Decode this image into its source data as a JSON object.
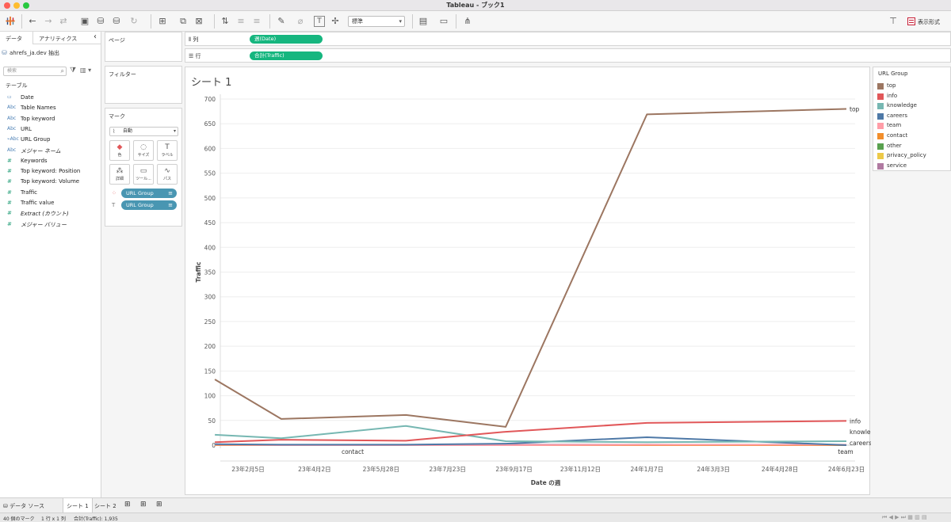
{
  "window": {
    "title": "Tableau - ブック1"
  },
  "toolbar": {
    "tableau_icon": "tableau-logo-icon",
    "undo_icon": "arrow-left-icon",
    "redo_icon": "arrow-right-icon",
    "view_size": "標準",
    "format_button_label": "表示形式"
  },
  "data_pane": {
    "tabs": [
      "データ",
      "アナリティクス"
    ],
    "collapse_glyph": "‹",
    "datasource": "ahrefs_ja.dev 抽出",
    "search_placeholder": "検索",
    "section_title": "テーブル",
    "dimensions": [
      {
        "type": "date",
        "icon": "▭",
        "label": "Date",
        "italic": false
      },
      {
        "type": "string",
        "icon": "Abc",
        "label": "Table Names",
        "italic": false
      },
      {
        "type": "string",
        "icon": "Abc",
        "label": "Top keyword",
        "italic": false
      },
      {
        "type": "string",
        "icon": "Abc",
        "label": "URL",
        "italic": false
      },
      {
        "type": "group",
        "icon": "⌁Abc",
        "label": "URL Group",
        "italic": false
      },
      {
        "type": "string",
        "icon": "Abc",
        "label": "メジャー ネーム",
        "italic": true
      }
    ],
    "measures": [
      {
        "type": "number",
        "icon": "#",
        "label": "Keywords",
        "italic": false
      },
      {
        "type": "number",
        "icon": "#",
        "label": "Top keyword: Position",
        "italic": false
      },
      {
        "type": "number",
        "icon": "#",
        "label": "Top keyword: Volume",
        "italic": false
      },
      {
        "type": "number",
        "icon": "#",
        "label": "Traffic",
        "italic": false
      },
      {
        "type": "number",
        "icon": "#",
        "label": "Traffic value",
        "italic": false
      },
      {
        "type": "number",
        "icon": "#",
        "label": "Extract (カウント)",
        "italic": true
      },
      {
        "type": "number",
        "icon": "#",
        "label": "メジャー バリュー",
        "italic": true
      }
    ]
  },
  "cards": {
    "pages": "ページ",
    "filters": "フィルター",
    "marks": {
      "title": "マーク",
      "mark_type": "自動",
      "buttons": [
        {
          "name": "color",
          "label": "色",
          "icon": "◆"
        },
        {
          "name": "size",
          "label": "サイズ",
          "icon": "◌"
        },
        {
          "name": "label",
          "label": "ラベル",
          "icon": "T"
        },
        {
          "name": "detail",
          "label": "詳細",
          "icon": "⁂"
        },
        {
          "name": "tooltip",
          "label": "ツール...",
          "icon": "▭"
        },
        {
          "name": "path",
          "label": "パス",
          "icon": "∿"
        }
      ],
      "pills": [
        {
          "role": "color",
          "label": "URL Group"
        },
        {
          "role": "label",
          "label": "URL Group"
        }
      ]
    }
  },
  "shelves": {
    "columns_label": "列",
    "columns_pill": "週(Date)",
    "rows_label": "行",
    "rows_pill": "合計(Traffic)"
  },
  "sheet": {
    "title": "シート 1"
  },
  "legend": {
    "title": "URL Group",
    "items": [
      {
        "label": "top",
        "color": "#9c7661"
      },
      {
        "label": "info",
        "color": "#e15759"
      },
      {
        "label": "knowledge",
        "color": "#76b7b2"
      },
      {
        "label": "careers",
        "color": "#4e79a7"
      },
      {
        "label": "team",
        "color": "#ff9da7"
      },
      {
        "label": "contact",
        "color": "#f28e2b"
      },
      {
        "label": "other",
        "color": "#59a14f"
      },
      {
        "label": "privacy_policy",
        "color": "#edc948"
      },
      {
        "label": "service",
        "color": "#b07aa1"
      }
    ]
  },
  "chart_data": {
    "type": "line",
    "title": "",
    "xlabel": "Date の週",
    "ylabel": "Traffic",
    "ylim": [
      0,
      700
    ],
    "yticks": [
      0,
      50,
      100,
      150,
      200,
      250,
      300,
      350,
      400,
      450,
      500,
      550,
      600,
      650,
      700
    ],
    "x": [
      "23年1月8日",
      "23年3月5日",
      "23年6月18日",
      "23年9月10日",
      "24年1月7日",
      "24年6月23日"
    ],
    "xticks": [
      "23年2月5日",
      "23年4月2日",
      "23年5月28日",
      "23年7月23日",
      "23年9月17日",
      "23年11月12日",
      "24年1月7日",
      "24年3月3日",
      "24年4月28日",
      "24年6月23日"
    ],
    "grid": true,
    "series": [
      {
        "name": "top",
        "color": "#9c7661",
        "values": [
          133,
          53,
          61,
          37,
          669,
          680
        ],
        "end_label": "top"
      },
      {
        "name": "info",
        "color": "#e15759",
        "values": [
          6,
          11,
          9,
          27,
          45,
          49
        ],
        "end_label": "info"
      },
      {
        "name": "knowledge",
        "color": "#76b7b2",
        "values": [
          21,
          14,
          39,
          8,
          6,
          8
        ],
        "end_label": "knowledge"
      },
      {
        "name": "careers",
        "color": "#4e79a7",
        "values": [
          2,
          1,
          1,
          3,
          16,
          0
        ],
        "end_label": "careers"
      },
      {
        "name": "team",
        "color": "#ff9da7",
        "values": [
          1,
          0,
          0,
          0,
          1,
          1
        ],
        "end_label": "team"
      },
      {
        "name": "contact",
        "color": "#f28e2b",
        "values": [
          0,
          0,
          0,
          0,
          0,
          0
        ],
        "end_label": "contact"
      },
      {
        "name": "other",
        "color": "#59a14f",
        "values": [
          null,
          null,
          null,
          null,
          0,
          0
        ],
        "end_label": ""
      },
      {
        "name": "privacy_policy",
        "color": "#edc948",
        "values": [
          0,
          0,
          0,
          0,
          0,
          0
        ],
        "end_label": ""
      },
      {
        "name": "service",
        "color": "#b07aa1",
        "values": [
          0,
          0,
          0,
          1,
          1,
          0
        ],
        "end_label": ""
      }
    ]
  },
  "bottom": {
    "datasource_tab": "データ ソース",
    "sheets": [
      "シート 1",
      "シート 2"
    ]
  },
  "status": {
    "marks": "40 個のマーク",
    "dims": "1 行 x 1 列",
    "sum": "合計(Traffic): 1,935"
  }
}
